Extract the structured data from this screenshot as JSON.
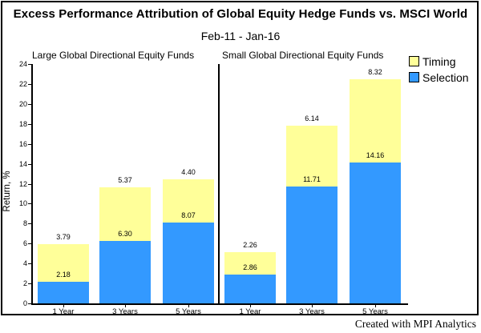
{
  "title": "Excess Performance Attribution of Global Equity Hedge Funds vs. MSCI World",
  "subtitle": "Feb-11 - Jan-16",
  "credit": "Created with MPI Analytics",
  "colors": {
    "timing": "#FFFF99",
    "selection": "#3399FF",
    "axis": "#000000",
    "background": "#FFFFFF"
  },
  "legend": [
    {
      "label": "Timing",
      "color": "#FFFF99"
    },
    {
      "label": "Selection",
      "color": "#3399FF"
    }
  ],
  "chart_data": {
    "type": "bar",
    "stacked": true,
    "title": "Excess Performance Attribution of Global Equity Hedge Funds vs. MSCI World",
    "subtitle": "Feb-11 - Jan-16",
    "xlabel": "",
    "ylabel": "Return, %",
    "ylim": [
      0,
      24
    ],
    "ytick_step": 2,
    "grid": false,
    "legend_position": "top-right",
    "legend_entries": [
      "Timing",
      "Selection"
    ],
    "groups": [
      {
        "label": "Large Global Directional Equity Funds",
        "categories": [
          "1 Year",
          "3 Years",
          "5 Years"
        ],
        "series": [
          {
            "name": "Selection",
            "values": [
              2.18,
              6.3,
              8.07
            ]
          },
          {
            "name": "Timing",
            "values": [
              3.79,
              5.37,
              4.4
            ]
          }
        ]
      },
      {
        "label": "Small Global Directional Equity Funds",
        "categories": [
          "1 Year",
          "3 Years",
          "5 Years"
        ],
        "series": [
          {
            "name": "Selection",
            "values": [
              2.86,
              11.71,
              14.16
            ]
          },
          {
            "name": "Timing",
            "values": [
              2.26,
              6.14,
              8.32
            ]
          }
        ]
      }
    ]
  }
}
